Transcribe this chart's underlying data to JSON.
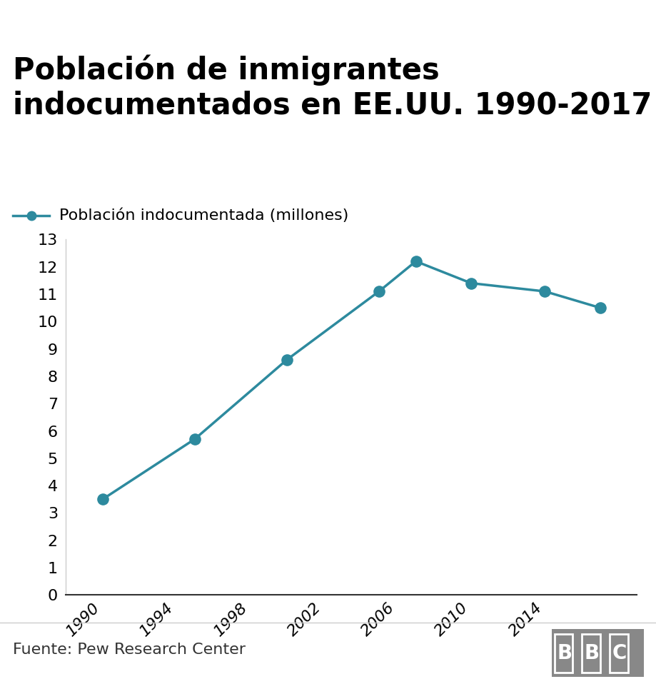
{
  "title": "Población de inmigrantes\nindocumentados en EE.UU. 1990-2017",
  "legend_label": "Población indocumentada (millones)",
  "years": [
    1990,
    1995,
    2000,
    2005,
    2007,
    2010,
    2014,
    2017
  ],
  "values": [
    3.5,
    5.7,
    8.6,
    11.1,
    12.2,
    11.4,
    11.1,
    10.5
  ],
  "line_color": "#2d8a9e",
  "marker_color": "#2d8a9e",
  "background_color": "#ffffff",
  "title_fontsize": 30,
  "legend_fontsize": 16,
  "tick_fontsize": 16,
  "ylim": [
    0,
    13
  ],
  "yticks": [
    0,
    1,
    2,
    3,
    4,
    5,
    6,
    7,
    8,
    9,
    10,
    11,
    12,
    13
  ],
  "xtick_labels": [
    "1990",
    "1994",
    "1998",
    "2002",
    "2006",
    "2010",
    "2014"
  ],
  "xtick_positions": [
    1990,
    1994,
    1998,
    2002,
    2006,
    2010,
    2014
  ],
  "footer_text": "Fuente: Pew Research Center",
  "bbc_text": "BBC",
  "footer_fontsize": 16,
  "bbc_fontsize": 18
}
